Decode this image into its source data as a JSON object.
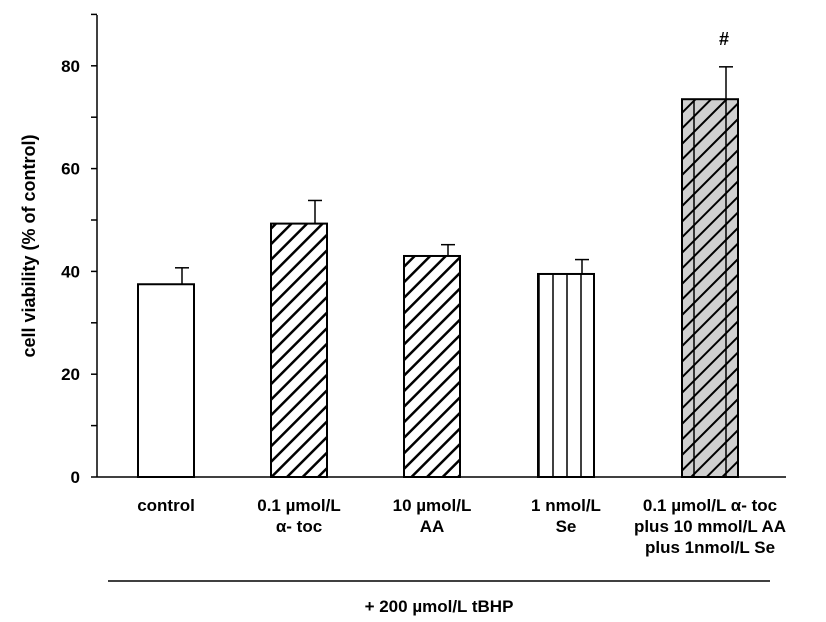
{
  "chart_data": {
    "type": "bar",
    "ylabel": "cell viability (% of control)",
    "xlabel": "+ 200 µmol/L tBHP",
    "ylim": [
      0,
      90
    ],
    "yticks": [
      0,
      20,
      40,
      60,
      80
    ],
    "grid": false,
    "categories": [
      [
        "control"
      ],
      [
        "0.1 µmol/L",
        "α- toc"
      ],
      [
        "10 µmol/L",
        "AA"
      ],
      [
        "1 nmol/L",
        "Se"
      ],
      [
        "0.1 µmol/L α- toc",
        "plus 10 mmol/L AA",
        "plus 1nmol/L Se"
      ]
    ],
    "values": [
      37.5,
      49.3,
      43.0,
      39.5,
      73.5
    ],
    "errors": [
      3.2,
      4.5,
      2.2,
      2.8,
      6.3
    ],
    "patterns": [
      "none",
      "diagonal",
      "diagonal",
      "vertical",
      "diagonal-vertical-gray"
    ],
    "annotations": [
      "",
      "",
      "",
      "",
      "#"
    ]
  }
}
